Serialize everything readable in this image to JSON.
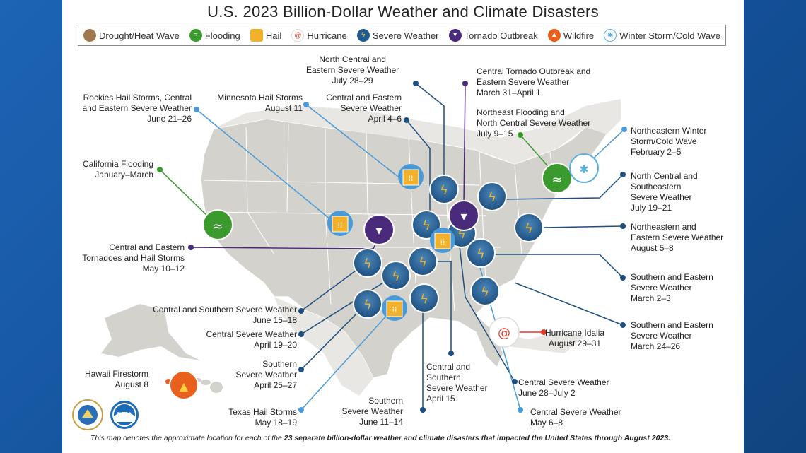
{
  "title": "U.S. 2023 Billion-Dollar Weather and Climate Disasters",
  "legend": [
    {
      "label": "Drought/Heat Wave",
      "icon": "drought-icon",
      "color": "#a07850"
    },
    {
      "label": "Flooding",
      "icon": "flooding-icon",
      "color": "#3a9a2e"
    },
    {
      "label": "Hail",
      "icon": "hail-icon",
      "color": "#f2b12a"
    },
    {
      "label": "Hurricane",
      "icon": "hurricane-icon",
      "color": "#e03a2a"
    },
    {
      "label": "Severe Weather",
      "icon": "severe-weather-icon",
      "color": "#1f5b8f"
    },
    {
      "label": "Tornado Outbreak",
      "icon": "tornado-icon",
      "color": "#4a2a7a"
    },
    {
      "label": "Wildfire",
      "icon": "wildfire-icon",
      "color": "#e8601c"
    },
    {
      "label": "Winter Storm/Cold Wave",
      "icon": "winter-storm-icon",
      "color": "#5ab0e0"
    }
  ],
  "events": [
    {
      "name": "North Central and",
      "name2": "Eastern Severe Weather",
      "date": "July 28–29"
    },
    {
      "name": "Central Tornado Outbreak and",
      "name2": "Eastern Severe Weather",
      "date": "March 31–April 1"
    },
    {
      "name": "Rockies Hail Storms, Central",
      "name2": "and Eastern Severe Weather",
      "date": "June 21–26"
    },
    {
      "name": "Minnesota Hail Storms",
      "date": "August 11"
    },
    {
      "name": "Central and Eastern",
      "name2": "Severe Weather",
      "date": "April 4–6"
    },
    {
      "name": "Northeast Flooding and",
      "name2": "North Central Severe Weather",
      "date": "July 9–15"
    },
    {
      "name": "Northeastern Winter",
      "name2": "Storm/Cold Wave",
      "date": "February 2–5"
    },
    {
      "name": "California Flooding",
      "date": "January–March"
    },
    {
      "name": "North Central and",
      "name2": "Southeastern",
      "name3": "Severe Weather",
      "date": "July 19–21"
    },
    {
      "name": "Central and Eastern",
      "name2": "Tornadoes and Hail Storms",
      "date": "May 10–12"
    },
    {
      "name": "Northeastern and",
      "name2": "Eastern Severe Weather",
      "date": "August 5–8"
    },
    {
      "name": "Southern and Eastern",
      "name2": "Severe Weather",
      "date": "March 2–3"
    },
    {
      "name": "Central and Southern Severe Weather",
      "date": "June 15–18"
    },
    {
      "name": "Central Severe Weather",
      "date": "April 19–20"
    },
    {
      "name": "Southern and Eastern",
      "name2": "Severe Weather",
      "date": "March 24–26"
    },
    {
      "name": "Hurricane Idalia",
      "date": "August 29–31"
    },
    {
      "name": "Southern",
      "name2": "Severe Weather",
      "date": "April 25–27"
    },
    {
      "name": "Central and",
      "name2": "Southern",
      "name3": "Severe Weather",
      "date": "April 15"
    },
    {
      "name": "Central Severe Weather",
      "date": "June 28–July 2"
    },
    {
      "name": "Hawaii Firestorm",
      "date": "August 8"
    },
    {
      "name": "Texas Hail Storms",
      "date": "May 18–19"
    },
    {
      "name": "Southern",
      "name2": "Severe Weather",
      "date": "June 11–14"
    },
    {
      "name": "Central Severe Weather",
      "date": "May 6–8"
    }
  ],
  "footer": {
    "prefix": "This map denotes the approximate location for each of the ",
    "bold": "23 separate billion-dollar weather and climate disasters that impacted the United States through August 2023."
  },
  "logos": [
    {
      "name": "department-of-commerce-seal",
      "color": "#ffffff"
    },
    {
      "name": "noaa-logo",
      "color": "#1d6ab8"
    }
  ]
}
